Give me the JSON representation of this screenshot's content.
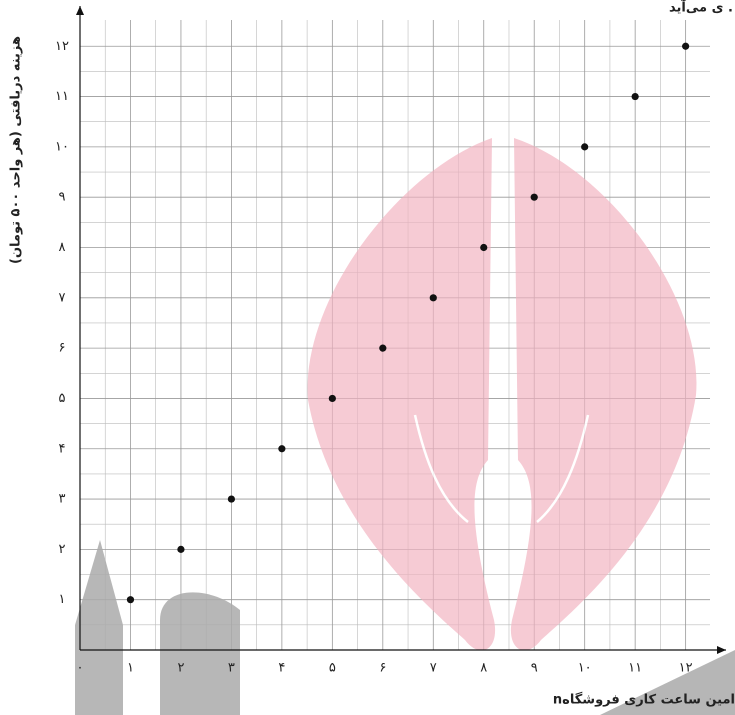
{
  "chart_data": {
    "type": "scatter",
    "annotation": "ی می‌آید .",
    "ylabel": "هزینه دریافتی (هر واحد ۵۰۰ تومان)",
    "xlabel": "nامین ساعت کاری فروشگاه",
    "x": [
      1,
      2,
      3,
      4,
      5,
      6,
      7,
      8,
      9,
      10,
      11,
      12
    ],
    "values": [
      1,
      2,
      3,
      4,
      5,
      6,
      7,
      8,
      9,
      10,
      11,
      12
    ],
    "color": "#111111",
    "xlim": [
      0,
      12.8
    ],
    "ylim": [
      0,
      12.8
    ],
    "xticks": [
      {
        "value": 0,
        "label": "۰"
      },
      {
        "value": 1,
        "label": "۱"
      },
      {
        "value": 2,
        "label": "۲"
      },
      {
        "value": 3,
        "label": "۳"
      },
      {
        "value": 4,
        "label": "۴"
      },
      {
        "value": 5,
        "label": "۵"
      },
      {
        "value": 6,
        "label": "۶"
      },
      {
        "value": 7,
        "label": "۷"
      },
      {
        "value": 8,
        "label": "۸"
      },
      {
        "value": 9,
        "label": "۹"
      },
      {
        "value": 10,
        "label": "۱۰"
      },
      {
        "value": 11,
        "label": "۱۱"
      },
      {
        "value": 12,
        "label": "۱۲"
      }
    ],
    "yticks": [
      {
        "value": 1,
        "label": "۱"
      },
      {
        "value": 2,
        "label": "۲"
      },
      {
        "value": 3,
        "label": "۳"
      },
      {
        "value": 4,
        "label": "۴"
      },
      {
        "value": 5,
        "label": "۵"
      },
      {
        "value": 6,
        "label": "۶"
      },
      {
        "value": 7,
        "label": "۷"
      },
      {
        "value": 8,
        "label": "۸"
      },
      {
        "value": 9,
        "label": "۹"
      },
      {
        "value": 10,
        "label": "۱۰"
      },
      {
        "value": 11,
        "label": "۱۱"
      },
      {
        "value": 12,
        "label": "۱۲"
      }
    ],
    "grid": true
  }
}
